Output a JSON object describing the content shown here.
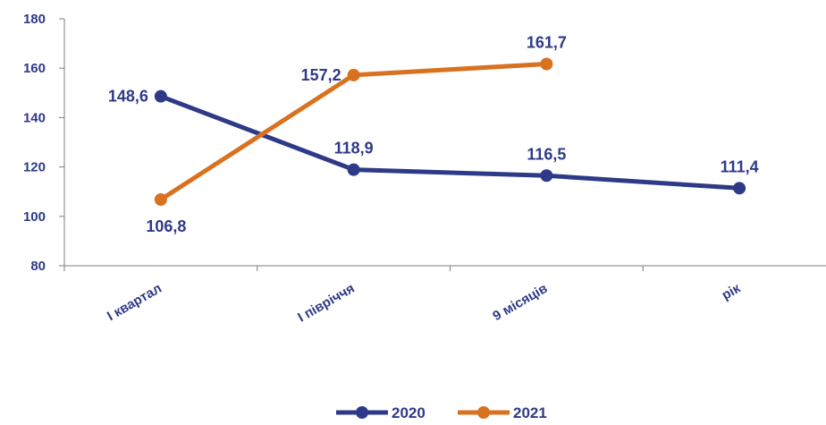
{
  "chart_data": {
    "type": "line",
    "categories": [
      "I квартал",
      "I півріччя",
      "9 місяців",
      "рік"
    ],
    "ylim": [
      80,
      180
    ],
    "yticks": [
      80,
      100,
      120,
      140,
      160,
      180
    ],
    "grid": false,
    "legend_position": "bottom",
    "series": [
      {
        "name": "2020",
        "color": "#2E3A87",
        "values": [
          148.6,
          118.9,
          116.5,
          111.4
        ],
        "labels": [
          "148,6",
          "118,9",
          "116,5",
          "111,4"
        ]
      },
      {
        "name": "2021",
        "color": "#D9711F",
        "values": [
          106.8,
          157.2,
          161.7,
          null
        ],
        "labels": [
          "106,8",
          "157,2",
          "161,7",
          null
        ]
      }
    ]
  }
}
